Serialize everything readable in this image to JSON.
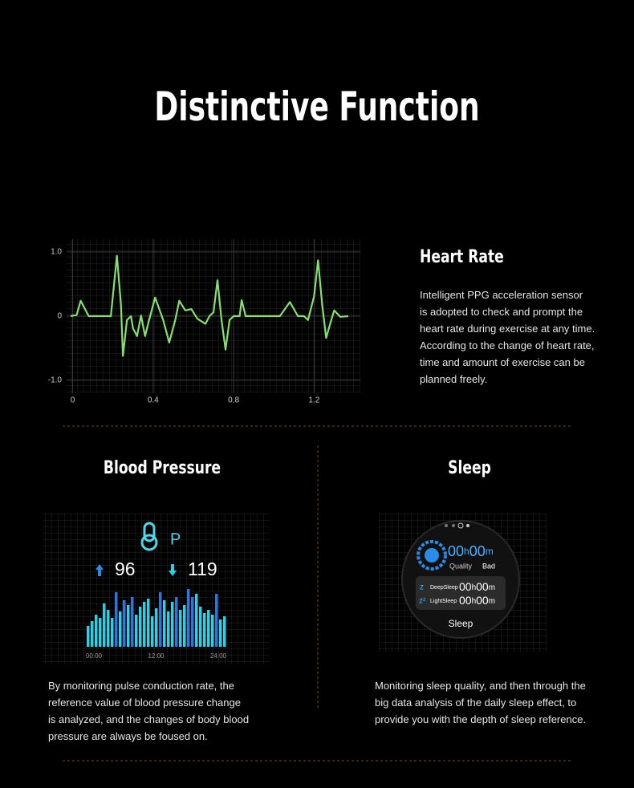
{
  "header": {
    "title": "Distinctive Function"
  },
  "chart_data": [
    {
      "type": "line",
      "grid": true,
      "x": [
        -0.01,
        0.02,
        0.04,
        0.06,
        0.08,
        0.19,
        0.22,
        0.24,
        0.25,
        0.27,
        0.29,
        0.3,
        0.32,
        0.34,
        0.36,
        0.38,
        0.41,
        0.45,
        0.48,
        0.51,
        0.53,
        0.56,
        0.59,
        0.62,
        0.66,
        0.68,
        0.7,
        0.72,
        0.74,
        0.76,
        0.78,
        0.8,
        0.83,
        0.84,
        0.86,
        1.03,
        1.08,
        1.12,
        1.15,
        1.17,
        1.2,
        1.22,
        1.24,
        1.26,
        1.28,
        1.3,
        1.33,
        1.37
      ],
      "series": [
        {
          "color": "#86e06f",
          "values": [
            0,
            0.02,
            0.24,
            0.12,
            0,
            0,
            0.94,
            0.19,
            -0.62,
            -0.06,
            0,
            -0.19,
            -0.31,
            0.01,
            -0.31,
            -0.06,
            0.29,
            -0.06,
            -0.41,
            -0.06,
            0.24,
            0.09,
            0.11,
            -0.04,
            -0.12,
            0,
            0.06,
            0.56,
            -0.06,
            -0.52,
            -0.06,
            0,
            0,
            0.25,
            0,
            0,
            0.22,
            0,
            0,
            -0.06,
            0.31,
            0.87,
            0.19,
            -0.34,
            -0.12,
            0.09,
            -0.01,
            0
          ]
        }
      ],
      "xlim": [
        -0.03,
        1.43
      ],
      "ylim": [
        -1.2,
        1.2
      ],
      "xticks": [
        0,
        0.4,
        0.8,
        1.2
      ],
      "yticks": [
        {
          "value": 1,
          "label": "1.0"
        },
        0,
        {
          "value": -1,
          "label": "-1.0"
        }
      ]
    },
    {
      "type": "bar",
      "values": [
        26,
        32,
        40,
        36,
        54,
        46,
        36,
        68,
        44,
        58,
        52,
        62,
        40,
        50,
        56,
        60,
        38,
        48,
        68,
        58,
        44,
        56,
        62,
        46,
        52,
        72,
        62,
        66,
        50,
        42,
        46,
        40,
        66,
        34,
        38
      ],
      "colors": [
        "#2ad0e4",
        "#2ad0e4",
        "#2ad0e4",
        "#2ad0e4",
        "#2ad0e4",
        "#2ad0e4",
        "#2ad0e4",
        "#2a78dd",
        "#2ad0e4",
        "#2a78dd",
        "#2ad0e4",
        "#2a78dd",
        "#2ad0e4",
        "#2ad0e4",
        "#2ad0e4",
        "#2ad0e4",
        "#2ad0e4",
        "#2ad0e4",
        "#2a78dd",
        "#2ad0e4",
        "#2ad0e4",
        "#2ad0e4",
        "#2a78dd",
        "#2ad0e4",
        "#2ad0e4",
        "#2a78dd",
        "#2a78dd",
        "#2ad0e4",
        "#2ad0e4",
        "#2ad0e4",
        "#2ad0e4",
        "#2ad0e4",
        "#2a78dd",
        "#2ad0e4",
        "#2ad0e4"
      ],
      "xtick_labels": [
        "00:00",
        "12:00",
        "24:00"
      ]
    }
  ],
  "heart_rate": {
    "heading": "Heart Rate",
    "lines": [
      "Intelligent PPG acceleration sensor",
      "is adopted to check and prompt the",
      "heart rate during exercise at any time.",
      "According to the change of heart rate,",
      "time and amount of exercise can be",
      "planned freely."
    ]
  },
  "blood_pressure": {
    "heading": "Blood Pressure",
    "icon_label": "P",
    "high": "96",
    "low": "119",
    "lines": [
      "By monitoring pulse conduction rate, the",
      "reference value of blood pressure change",
      "is analyzed, and the changes of body blood",
      "pressure are always be foused on."
    ]
  },
  "sleep": {
    "heading": "Sleep",
    "hours": "00",
    "h": "h",
    "minutes": "00",
    "m": "m",
    "quality_label": "Quality",
    "quality": "Bad",
    "deep": {
      "label": "DeepSleep",
      "hours": "00",
      "minutes": "00"
    },
    "light": {
      "label": "LightSleep",
      "hours": "00",
      "minutes": "00"
    },
    "button": "Sleep",
    "lines": [
      "Monitoring sleep quality, and then through the",
      "big data analysis of the daily sleep effect, to",
      "provide you with the depth of sleep reference."
    ]
  }
}
